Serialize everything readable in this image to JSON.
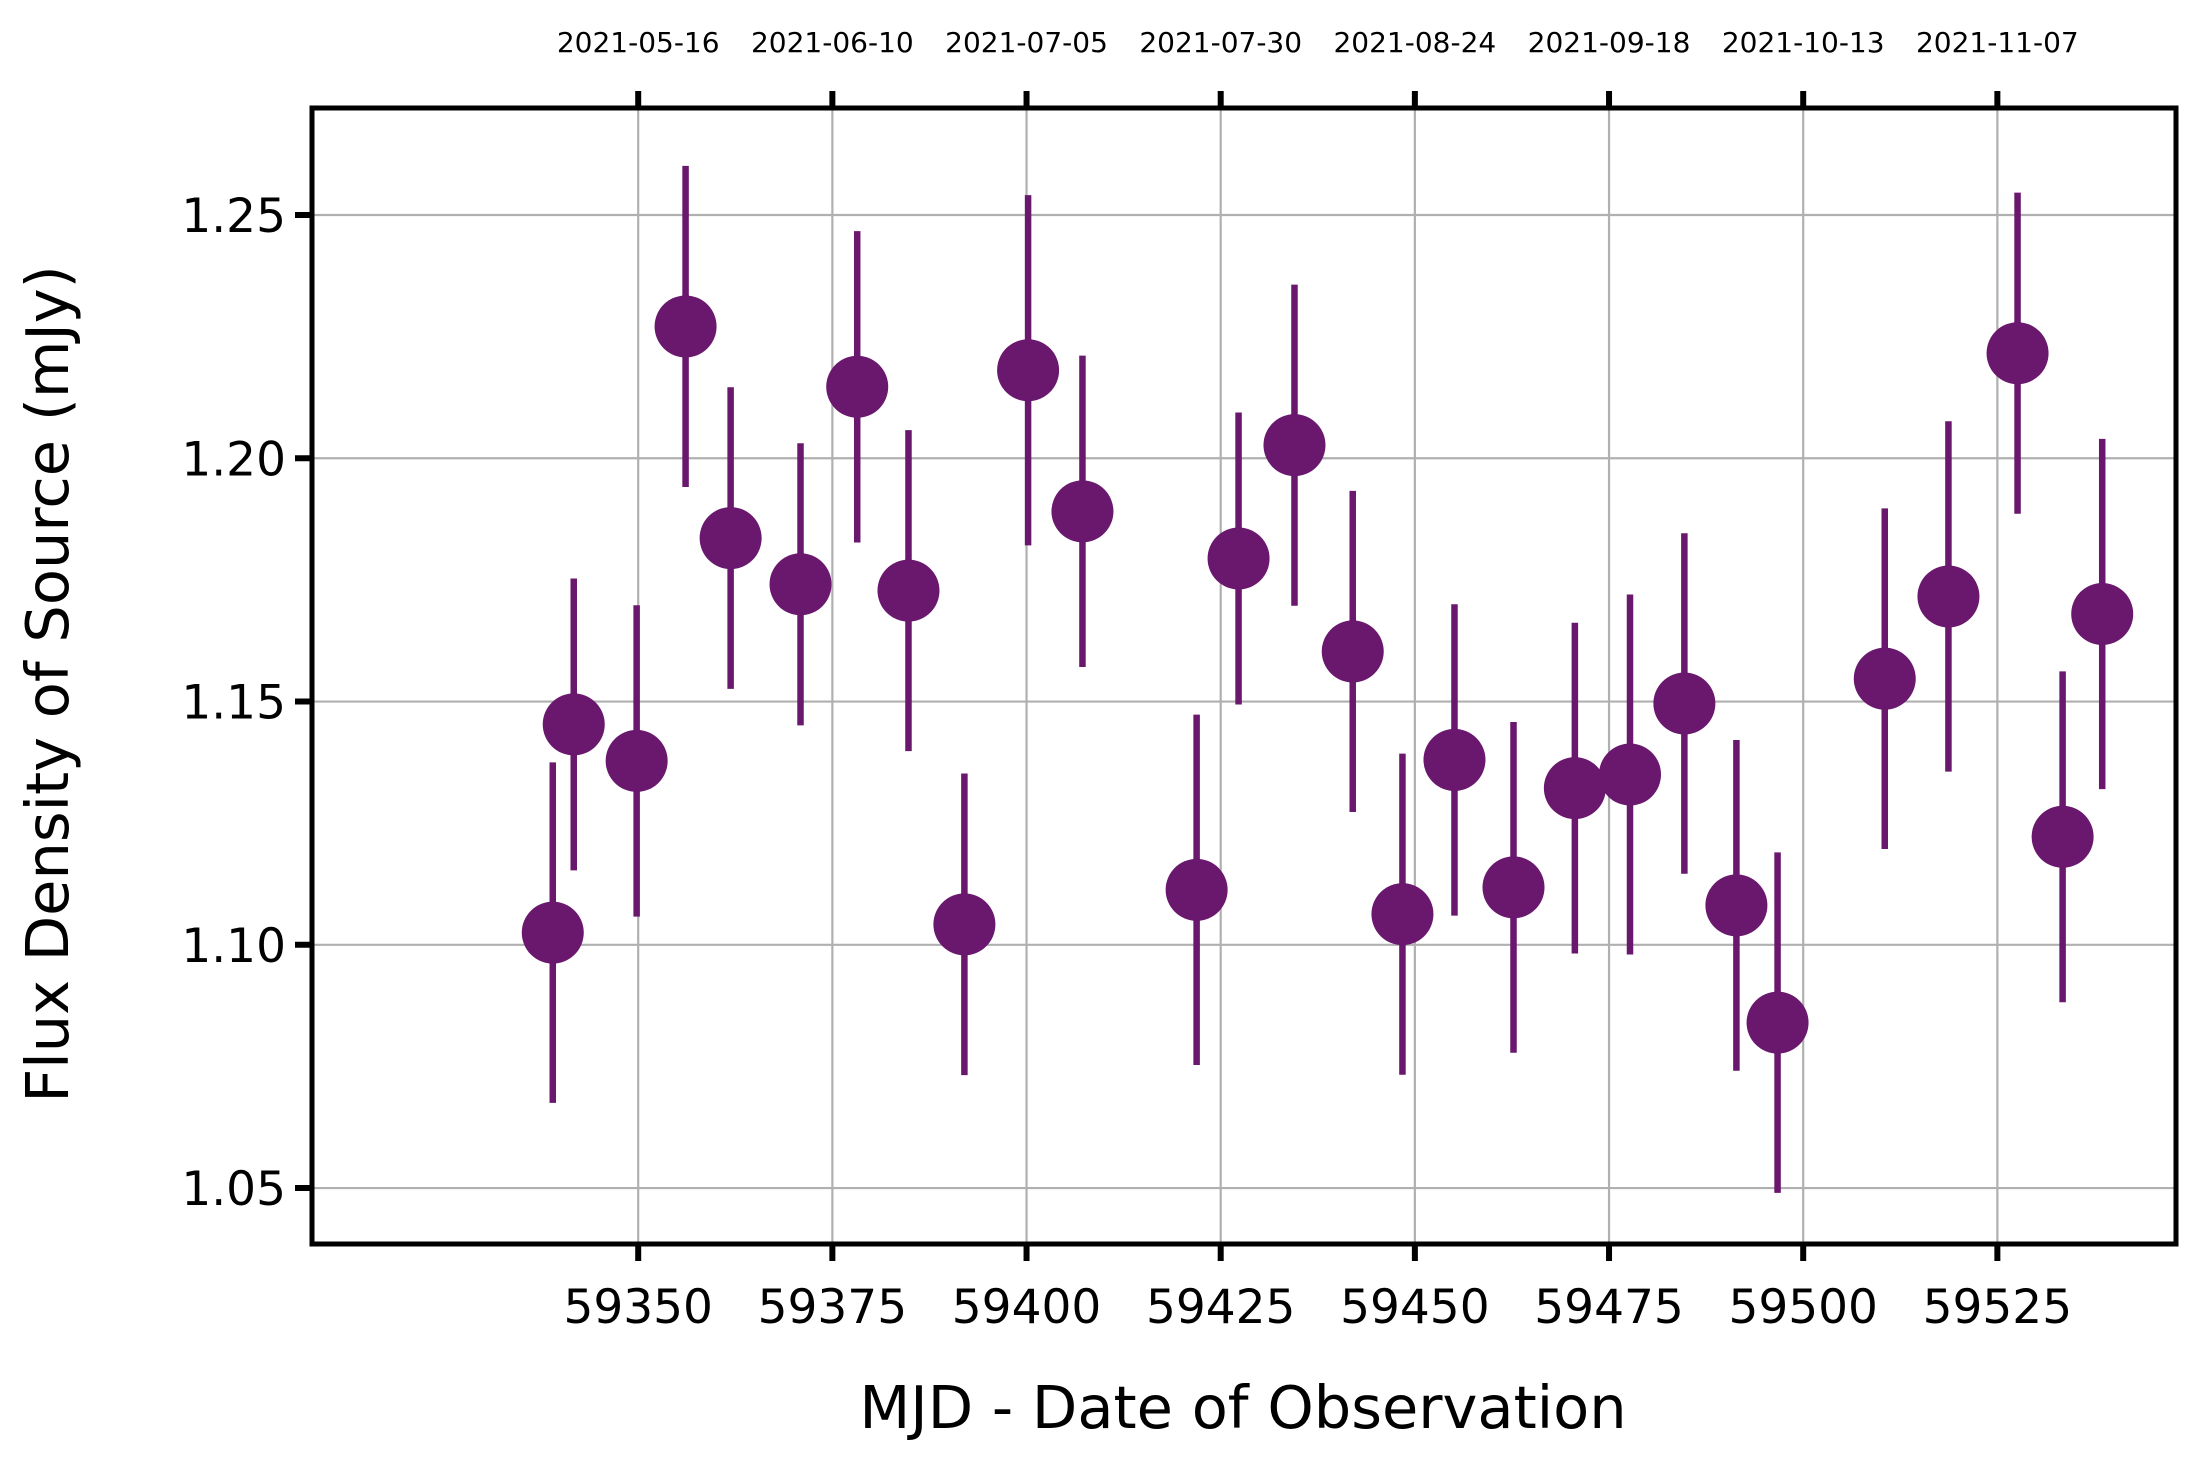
{
  "chart_data": {
    "type": "scatter",
    "title": "",
    "xlabel": "MJD - Date of Observation",
    "ylabel": "Flux Density of Source (mJy)",
    "xlim": [
      59308,
      59548
    ],
    "ylim": [
      1.0385,
      1.272
    ],
    "grid": true,
    "legend": "none",
    "colors": {
      "marker": "#6a176e",
      "grid": "#b0b0b0",
      "axis": "#000000"
    },
    "x_ticks": [
      59350,
      59375,
      59400,
      59425,
      59450,
      59475,
      59500,
      59525
    ],
    "x_tick_labels": [
      "59350",
      "59375",
      "59400",
      "59425",
      "59450",
      "59475",
      "59500",
      "59525"
    ],
    "y_ticks": [
      1.05,
      1.1,
      1.15,
      1.2,
      1.25
    ],
    "y_tick_labels": [
      "1.05",
      "1.10",
      "1.15",
      "1.20",
      "1.25"
    ],
    "top_axis": {
      "ticks": [
        59350,
        59375,
        59400,
        59425,
        59450,
        59475,
        59500,
        59525
      ],
      "labels": [
        "2021-05-16",
        "2021-06-10",
        "2021-07-05",
        "2021-07-30",
        "2021-08-24",
        "2021-09-18",
        "2021-10-13",
        "2021-11-07"
      ]
    },
    "series": [
      {
        "marker": "circle",
        "points": [
          {
            "x": 59339.0,
            "y": 1.1025,
            "yerr": 0.035
          },
          {
            "x": 59341.7,
            "y": 1.1453,
            "yerr": 0.03
          },
          {
            "x": 59349.8,
            "y": 1.1378,
            "yerr": 0.032
          },
          {
            "x": 59356.1,
            "y": 1.2271,
            "yerr": 0.033
          },
          {
            "x": 59361.9,
            "y": 1.1836,
            "yerr": 0.031
          },
          {
            "x": 59370.9,
            "y": 1.1741,
            "yerr": 0.029
          },
          {
            "x": 59378.2,
            "y": 1.2147,
            "yerr": 0.032
          },
          {
            "x": 59384.8,
            "y": 1.1728,
            "yerr": 0.033
          },
          {
            "x": 59392.0,
            "y": 1.1042,
            "yerr": 0.031
          },
          {
            "x": 59400.2,
            "y": 1.2181,
            "yerr": 0.036
          },
          {
            "x": 59407.2,
            "y": 1.1891,
            "yerr": 0.032
          },
          {
            "x": 59421.9,
            "y": 1.1113,
            "yerr": 0.036
          },
          {
            "x": 59427.3,
            "y": 1.1794,
            "yerr": 0.03
          },
          {
            "x": 59434.5,
            "y": 1.2027,
            "yerr": 0.033
          },
          {
            "x": 59442.0,
            "y": 1.1603,
            "yerr": 0.033
          },
          {
            "x": 59448.4,
            "y": 1.1063,
            "yerr": 0.033
          },
          {
            "x": 59455.1,
            "y": 1.138,
            "yerr": 0.032
          },
          {
            "x": 59462.7,
            "y": 1.1118,
            "yerr": 0.034
          },
          {
            "x": 59470.6,
            "y": 1.1322,
            "yerr": 0.034
          },
          {
            "x": 59477.7,
            "y": 1.135,
            "yerr": 0.037
          },
          {
            "x": 59484.7,
            "y": 1.1496,
            "yerr": 0.035
          },
          {
            "x": 59491.4,
            "y": 1.1081,
            "yerr": 0.034
          },
          {
            "x": 59496.7,
            "y": 1.084,
            "yerr": 0.035
          },
          {
            "x": 59510.5,
            "y": 1.1547,
            "yerr": 0.035
          },
          {
            "x": 59518.7,
            "y": 1.1716,
            "yerr": 0.036
          },
          {
            "x": 59527.6,
            "y": 1.2216,
            "yerr": 0.033
          },
          {
            "x": 59533.4,
            "y": 1.1222,
            "yerr": 0.034
          },
          {
            "x": 59538.5,
            "y": 1.168,
            "yerr": 0.036
          }
        ]
      }
    ]
  }
}
